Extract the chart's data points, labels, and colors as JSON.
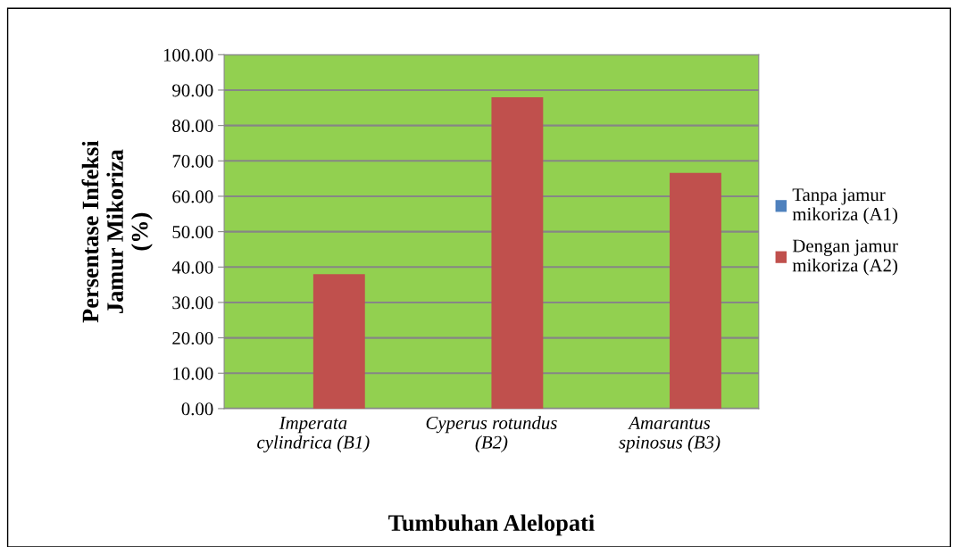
{
  "chart_data": {
    "type": "bar",
    "xlabel": "Tumbuhan Alelopati",
    "ylabel": "Persentase Infeksi\nJamur Mikoriza\n(%)",
    "categories": [
      "Imperata\ncylindrica (B1)",
      "Cyperus rotundus\n(B2)",
      "Amarantus\nspinosus (B3)"
    ],
    "series": [
      {
        "name": "Tanpa jamur\nmikoriza (A1)",
        "color": "#4f81bd",
        "values": [
          0,
          0,
          0
        ]
      },
      {
        "name": "Dengan jamur\nmikoriza (A2)",
        "color": "#c0504d",
        "values": [
          38,
          88,
          66.6
        ]
      }
    ],
    "ylim": [
      0,
      100
    ],
    "yticks": [
      {
        "value": 0,
        "label": "0.00"
      },
      {
        "value": 10,
        "label": "10.00"
      },
      {
        "value": 20,
        "label": "20.00"
      },
      {
        "value": 30,
        "label": "30.00"
      },
      {
        "value": 40,
        "label": "40.00"
      },
      {
        "value": 50,
        "label": "50.00"
      },
      {
        "value": 60,
        "label": "60.00"
      },
      {
        "value": 70,
        "label": "70.00"
      },
      {
        "value": 80,
        "label": "80.00"
      },
      {
        "value": 90,
        "label": "90.00"
      },
      {
        "value": 100,
        "label": "100.00"
      }
    ],
    "grid": "y",
    "legend": "right"
  }
}
